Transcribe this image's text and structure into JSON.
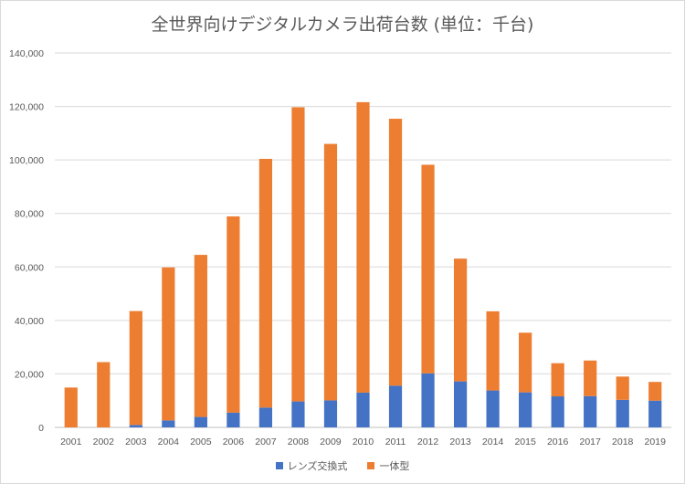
{
  "chart_data": {
    "type": "bar",
    "stacked": true,
    "title": "全世界向けデジタルカメラ出荷台数 (単位：千台)",
    "categories": [
      "2001",
      "2002",
      "2003",
      "2004",
      "2005",
      "2006",
      "2007",
      "2008",
      "2009",
      "2010",
      "2011",
      "2012",
      "2013",
      "2014",
      "2015",
      "2016",
      "2017",
      "2018",
      "2019"
    ],
    "series": [
      {
        "name": "レンズ交換式",
        "color": "#4472c4",
        "values": [
          0,
          0,
          900,
          2600,
          3900,
          5500,
          7400,
          9700,
          10100,
          13000,
          15600,
          20200,
          17200,
          13800,
          13100,
          11600,
          11700,
          10300,
          10000
        ]
      },
      {
        "name": "一体型",
        "color": "#ed7d31",
        "values": [
          14900,
          24400,
          42600,
          57200,
          60600,
          73400,
          93000,
          110000,
          95900,
          108600,
          99800,
          78000,
          45900,
          29600,
          22300,
          12400,
          13300,
          8700,
          7000
        ]
      }
    ],
    "ylim": [
      0,
      140000
    ],
    "yticks": [
      "0",
      "20,000",
      "40,000",
      "60,000",
      "80,000",
      "100,000",
      "120,000",
      "140,000"
    ],
    "grid": true,
    "legend_position": "bottom"
  }
}
